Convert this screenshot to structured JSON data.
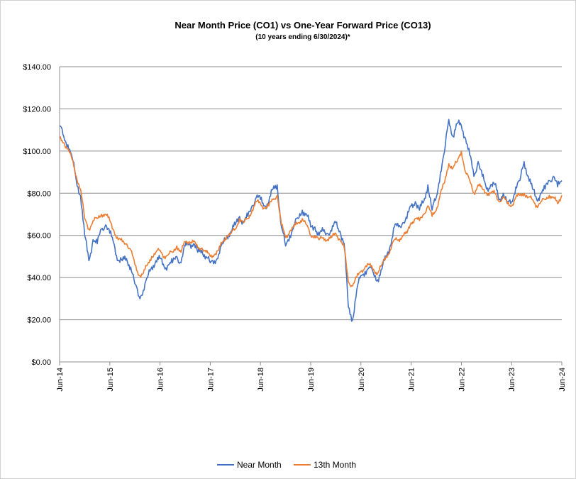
{
  "chart_data": {
    "type": "line",
    "title": "Near Month Price (CO1) vs One-Year Forward Price  (CO13)",
    "subtitle": "(10 years ending  6/30/2024)*",
    "xlabel": "",
    "ylabel": "",
    "ylim": [
      0,
      140
    ],
    "xlim": [
      "2014-06",
      "2024-06"
    ],
    "grid": true,
    "legend_position": "bottom",
    "y_ticks": [
      "$0.00",
      "$20.00",
      "$40.00",
      "$60.00",
      "$80.00",
      "$100.00",
      "$120.00",
      "$140.00"
    ],
    "x_ticks": [
      "Jun-14",
      "Jun-15",
      "Jun-16",
      "Jun-17",
      "Jun-18",
      "Jun-19",
      "Jun-20",
      "Jun-21",
      "Jun-22",
      "Jun-23",
      "Jun-24"
    ],
    "series": [
      {
        "name": "Near Month",
        "color": "#4472C4",
        "x": [
          "2014-06",
          "2014-07",
          "2014-08",
          "2014-09",
          "2014-10",
          "2014-11",
          "2014-12",
          "2015-01",
          "2015-02",
          "2015-03",
          "2015-04",
          "2015-05",
          "2015-06",
          "2015-07",
          "2015-08",
          "2015-09",
          "2015-10",
          "2015-11",
          "2015-12",
          "2016-01",
          "2016-02",
          "2016-03",
          "2016-04",
          "2016-05",
          "2016-06",
          "2016-07",
          "2016-08",
          "2016-09",
          "2016-10",
          "2016-11",
          "2016-12",
          "2017-01",
          "2017-02",
          "2017-03",
          "2017-04",
          "2017-05",
          "2017-06",
          "2017-07",
          "2017-08",
          "2017-09",
          "2017-10",
          "2017-11",
          "2017-12",
          "2018-01",
          "2018-02",
          "2018-03",
          "2018-04",
          "2018-05",
          "2018-06",
          "2018-07",
          "2018-08",
          "2018-09",
          "2018-10",
          "2018-11",
          "2018-12",
          "2019-01",
          "2019-02",
          "2019-03",
          "2019-04",
          "2019-05",
          "2019-06",
          "2019-07",
          "2019-08",
          "2019-09",
          "2019-10",
          "2019-11",
          "2019-12",
          "2020-01",
          "2020-02",
          "2020-03",
          "2020-04",
          "2020-05",
          "2020-06",
          "2020-07",
          "2020-08",
          "2020-09",
          "2020-10",
          "2020-11",
          "2020-12",
          "2021-01",
          "2021-02",
          "2021-03",
          "2021-04",
          "2021-05",
          "2021-06",
          "2021-07",
          "2021-08",
          "2021-09",
          "2021-10",
          "2021-11",
          "2021-12",
          "2022-01",
          "2022-02",
          "2022-03",
          "2022-04",
          "2022-05",
          "2022-06",
          "2022-07",
          "2022-08",
          "2022-09",
          "2022-10",
          "2022-11",
          "2022-12",
          "2023-01",
          "2023-02",
          "2023-03",
          "2023-04",
          "2023-05",
          "2023-06",
          "2023-07",
          "2023-08",
          "2023-09",
          "2023-10",
          "2023-11",
          "2023-12",
          "2024-01",
          "2024-02",
          "2024-03",
          "2024-04",
          "2024-05",
          "2024-06"
        ],
        "values": [
          112,
          107,
          103,
          97,
          86,
          79,
          60,
          48,
          58,
          56,
          63,
          65,
          61,
          56,
          48,
          48,
          49,
          45,
          37,
          31,
          34,
          40,
          45,
          48,
          49,
          45,
          46,
          47,
          50,
          47,
          55,
          56,
          56,
          52,
          53,
          50,
          47,
          48,
          51,
          56,
          60,
          62,
          65,
          69,
          66,
          69,
          74,
          78,
          77,
          74,
          76,
          82,
          84,
          64,
          55,
          60,
          65,
          68,
          72,
          70,
          64,
          64,
          60,
          62,
          61,
          62,
          66,
          62,
          56,
          26,
          20,
          34,
          41,
          43,
          45,
          42,
          39,
          44,
          50,
          55,
          64,
          64,
          66,
          68,
          74,
          76,
          72,
          76,
          84,
          72,
          78,
          90,
          100,
          115,
          107,
          113,
          112,
          106,
          98,
          88,
          95,
          88,
          82,
          84,
          84,
          77,
          80,
          75,
          76,
          83,
          86,
          95,
          88,
          82,
          77,
          80,
          82,
          86,
          88,
          83,
          86
        ]
      },
      {
        "name": "13th Month",
        "color": "#ED7D31",
        "x": [
          "2014-06",
          "2014-07",
          "2014-08",
          "2014-09",
          "2014-10",
          "2014-11",
          "2014-12",
          "2015-01",
          "2015-02",
          "2015-03",
          "2015-04",
          "2015-05",
          "2015-06",
          "2015-07",
          "2015-08",
          "2015-09",
          "2015-10",
          "2015-11",
          "2015-12",
          "2016-01",
          "2016-02",
          "2016-03",
          "2016-04",
          "2016-05",
          "2016-06",
          "2016-07",
          "2016-08",
          "2016-09",
          "2016-10",
          "2016-11",
          "2016-12",
          "2017-01",
          "2017-02",
          "2017-03",
          "2017-04",
          "2017-05",
          "2017-06",
          "2017-07",
          "2017-08",
          "2017-09",
          "2017-10",
          "2017-11",
          "2017-12",
          "2018-01",
          "2018-02",
          "2018-03",
          "2018-04",
          "2018-05",
          "2018-06",
          "2018-07",
          "2018-08",
          "2018-09",
          "2018-10",
          "2018-11",
          "2018-12",
          "2019-01",
          "2019-02",
          "2019-03",
          "2019-04",
          "2019-05",
          "2019-06",
          "2019-07",
          "2019-08",
          "2019-09",
          "2019-10",
          "2019-11",
          "2019-12",
          "2020-01",
          "2020-02",
          "2020-03",
          "2020-04",
          "2020-05",
          "2020-06",
          "2020-07",
          "2020-08",
          "2020-09",
          "2020-10",
          "2020-11",
          "2020-12",
          "2021-01",
          "2021-02",
          "2021-03",
          "2021-04",
          "2021-05",
          "2021-06",
          "2021-07",
          "2021-08",
          "2021-09",
          "2021-10",
          "2021-11",
          "2021-12",
          "2022-01",
          "2022-02",
          "2022-03",
          "2022-04",
          "2022-05",
          "2022-06",
          "2022-07",
          "2022-08",
          "2022-09",
          "2022-10",
          "2022-11",
          "2022-12",
          "2023-01",
          "2023-02",
          "2023-03",
          "2023-04",
          "2023-05",
          "2023-06",
          "2023-07",
          "2023-08",
          "2023-09",
          "2023-10",
          "2023-11",
          "2023-12",
          "2024-01",
          "2024-02",
          "2024-03",
          "2024-04",
          "2024-05",
          "2024-06"
        ],
        "values": [
          106,
          104,
          101,
          96,
          88,
          82,
          68,
          63,
          67,
          68,
          70,
          70,
          67,
          62,
          58,
          57,
          56,
          53,
          46,
          41,
          42,
          46,
          50,
          52,
          53,
          50,
          51,
          52,
          55,
          52,
          57,
          57,
          57,
          54,
          54,
          52,
          50,
          51,
          53,
          57,
          60,
          61,
          63,
          68,
          66,
          68,
          72,
          76,
          75,
          73,
          74,
          77,
          79,
          65,
          59,
          62,
          64,
          66,
          68,
          65,
          60,
          60,
          58,
          59,
          58,
          59,
          61,
          58,
          54,
          38,
          36,
          40,
          43,
          45,
          46,
          44,
          42,
          46,
          50,
          53,
          58,
          58,
          60,
          61,
          66,
          68,
          67,
          70,
          74,
          69,
          72,
          80,
          85,
          94,
          92,
          95,
          100,
          90,
          86,
          80,
          84,
          82,
          80,
          80,
          80,
          76,
          78,
          75,
          74,
          78,
          79,
          80,
          78,
          77,
          74,
          76,
          77,
          79,
          78,
          75,
          79
        ]
      }
    ]
  }
}
